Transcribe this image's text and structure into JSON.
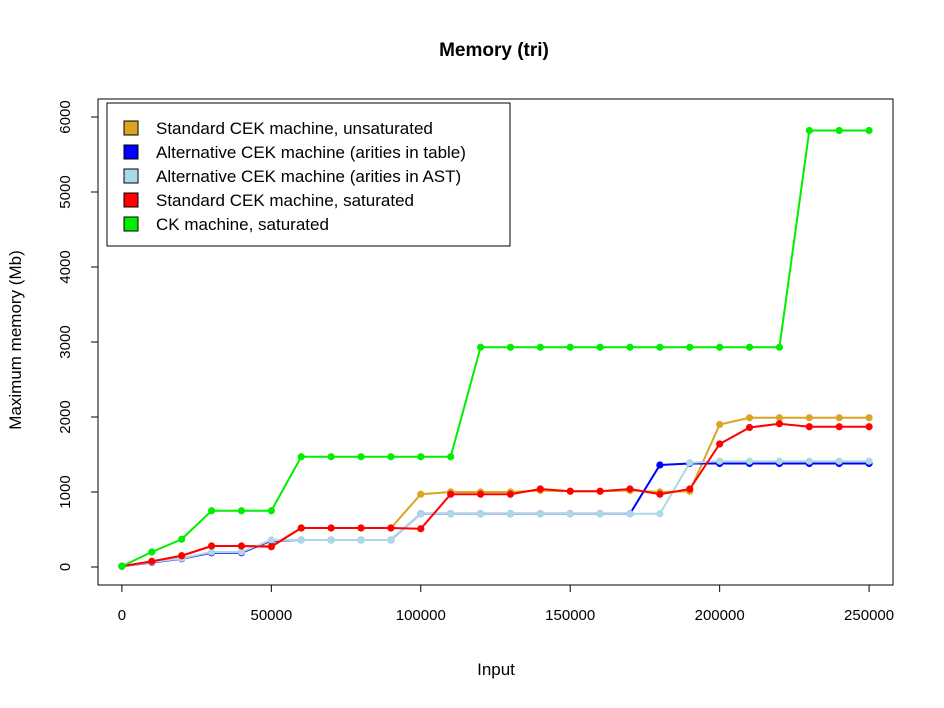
{
  "chart_data": {
    "type": "line",
    "title": "Memory (tri)",
    "xlabel": "Input",
    "ylabel": "Maximum memory (Mb)",
    "xlim": [
      -8000,
      258000
    ],
    "ylim": [
      -240,
      6240
    ],
    "x_ticks": [
      0,
      50000,
      100000,
      150000,
      200000,
      250000
    ],
    "x_tick_labels": [
      "0",
      "50000",
      "100000",
      "150000",
      "200000",
      "250000"
    ],
    "y_ticks": [
      0,
      1000,
      2000,
      3000,
      4000,
      5000,
      6000
    ],
    "y_tick_labels": [
      "0",
      "1000",
      "2000",
      "3000",
      "4000",
      "5000",
      "6000"
    ],
    "grid": false,
    "legend_position": "top-left",
    "x": [
      0,
      10000,
      20000,
      30000,
      40000,
      50000,
      60000,
      70000,
      80000,
      90000,
      100000,
      110000,
      120000,
      130000,
      140000,
      150000,
      160000,
      170000,
      180000,
      190000,
      200000,
      210000,
      220000,
      230000,
      240000,
      250000
    ],
    "series": [
      {
        "name": "Standard CEK machine, unsaturated",
        "color": "#DAA520",
        "values": [
          10,
          75,
          150,
          280,
          280,
          280,
          520,
          520,
          520,
          520,
          970,
          1000,
          1000,
          1000,
          1020,
          1010,
          1010,
          1020,
          1000,
          1010,
          1900,
          1990,
          1990,
          1990,
          1990,
          1990
        ]
      },
      {
        "name": "Alternative CEK machine (arities in table)",
        "color": "#0000FF",
        "values": [
          10,
          60,
          110,
          190,
          190,
          350,
          360,
          360,
          360,
          360,
          710,
          710,
          710,
          710,
          710,
          710,
          710,
          710,
          1360,
          1380,
          1380,
          1380,
          1380,
          1380,
          1380,
          1380
        ]
      },
      {
        "name": "Alternative CEK machine (arities in AST)",
        "color": "#ADD8E6",
        "values": [
          10,
          65,
          115,
          200,
          200,
          360,
          360,
          360,
          360,
          360,
          710,
          710,
          710,
          710,
          710,
          710,
          710,
          710,
          710,
          1390,
          1410,
          1410,
          1410,
          1410,
          1410,
          1410
        ]
      },
      {
        "name": "Standard CEK machine, saturated",
        "color": "#FF0000",
        "values": [
          10,
          75,
          150,
          280,
          280,
          270,
          520,
          520,
          520,
          520,
          510,
          970,
          970,
          970,
          1040,
          1010,
          1010,
          1040,
          970,
          1040,
          1640,
          1860,
          1910,
          1870,
          1870,
          1870
        ]
      },
      {
        "name": "CK machine, saturated",
        "color": "#00EE00",
        "values": [
          10,
          200,
          370,
          750,
          750,
          750,
          1470,
          1470,
          1470,
          1470,
          1470,
          1470,
          2930,
          2930,
          2930,
          2930,
          2930,
          2930,
          2930,
          2930,
          2930,
          2930,
          2930,
          5820,
          5820,
          5820
        ]
      }
    ]
  }
}
